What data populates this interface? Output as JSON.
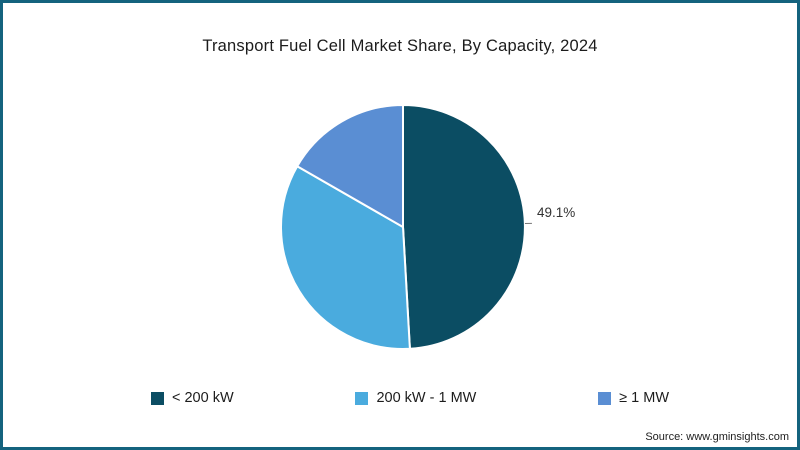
{
  "chart_data": {
    "type": "pie",
    "title": "Transport Fuel Cell Market Share, By Capacity, 2024",
    "categories": [
      "< 200 kW",
      "200 kW - 1 MW",
      "≥ 1 MW"
    ],
    "values": [
      49.1,
      34.2,
      16.7
    ],
    "slice_colors": [
      "#0b4d63",
      "#4aabde",
      "#5a8ed3"
    ],
    "slice_labels": [
      "49.1%",
      "",
      ""
    ],
    "start_angle_deg": 0,
    "direction": "clockwise",
    "legend_position": "bottom"
  },
  "source_note": "Source: www.gminsights.com",
  "colors": {
    "frame_border": "#14637e",
    "slice_divider": "#ffffff",
    "label_text": "#333333",
    "title_text": "#1c1c1c"
  }
}
